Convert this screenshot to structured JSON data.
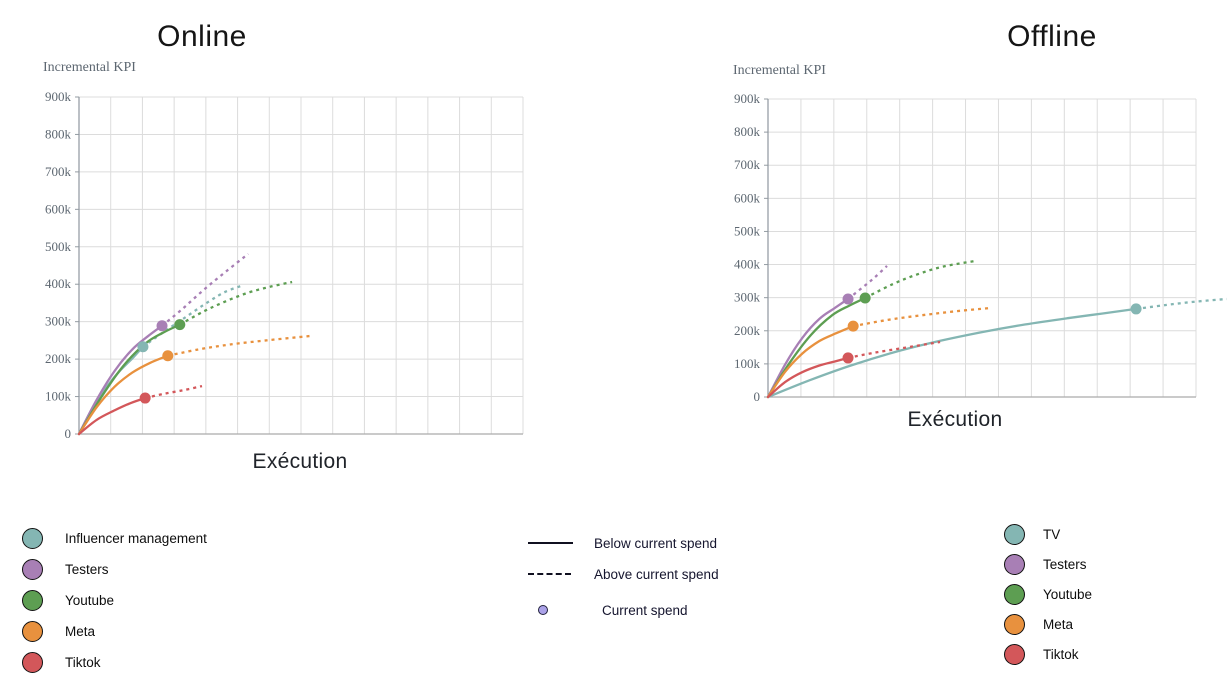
{
  "legends": {
    "online": {
      "items": [
        {
          "label": "Influencer management",
          "color": "#84b6b3"
        },
        {
          "label": "Testers",
          "color": "#a87fb5"
        },
        {
          "label": "Youtube",
          "color": "#5d9e52"
        },
        {
          "label": "Meta",
          "color": "#e8913e"
        },
        {
          "label": "Tiktok",
          "color": "#d3575a"
        }
      ]
    },
    "offline": {
      "items": [
        {
          "label": "TV",
          "color": "#84b6b3"
        },
        {
          "label": "Testers",
          "color": "#a87fb5"
        },
        {
          "label": "Youtube",
          "color": "#5d9e52"
        },
        {
          "label": "Meta",
          "color": "#e8913e"
        },
        {
          "label": "Tiktok",
          "color": "#d3575a"
        }
      ]
    },
    "styles": {
      "below": "Below current spend",
      "above": "Above current spend",
      "current": "Current spend",
      "current_dot_color": "#aba2e8"
    }
  },
  "chart_data": [
    {
      "type": "line",
      "title": "Online",
      "xlabel": "Exécution",
      "ylabel": "Incremental KPI",
      "ylim": [
        0,
        900000
      ],
      "y_ticks": [
        "0",
        "100k",
        "200k",
        "300k",
        "400k",
        "500k",
        "600k",
        "700k",
        "800k",
        "900k"
      ],
      "x_ticks": "none (unlabeled spend axis, gridlines only)",
      "grid": true,
      "y_units": "thousands of incremental KPI",
      "x_units": "fraction of plot width",
      "line_styles": {
        "solid": "below current spend",
        "dashed": "above current spend",
        "dot": "current spend"
      },
      "series": [
        {
          "name": "Influencer management",
          "color": "#84b6b3",
          "solid": [
            [
              0,
              0
            ],
            [
              0.03,
              68
            ],
            [
              0.06,
              122
            ],
            [
              0.09,
              166
            ],
            [
              0.12,
              202
            ],
            [
              0.144,
              233
            ]
          ],
          "dashed": [
            [
              0.144,
              233
            ],
            [
              0.19,
              272
            ],
            [
              0.24,
              312
            ],
            [
              0.29,
              352
            ],
            [
              0.33,
              380
            ],
            [
              0.367,
              396
            ]
          ],
          "current_spend": [
            0.144,
            233
          ]
        },
        {
          "name": "Testers",
          "color": "#a87fb5",
          "solid": [
            [
              0,
              0
            ],
            [
              0.04,
              92
            ],
            [
              0.08,
              168
            ],
            [
              0.12,
              226
            ],
            [
              0.155,
              261
            ],
            [
              0.187,
              289
            ]
          ],
          "dashed": [
            [
              0.187,
              289
            ],
            [
              0.23,
              331
            ],
            [
              0.28,
              384
            ],
            [
              0.33,
              433
            ],
            [
              0.381,
              481
            ]
          ],
          "current_spend": [
            0.187,
            289
          ]
        },
        {
          "name": "Youtube",
          "color": "#5d9e52",
          "solid": [
            [
              0,
              0
            ],
            [
              0.05,
              98
            ],
            [
              0.1,
              182
            ],
            [
              0.15,
              242
            ],
            [
              0.19,
              271
            ],
            [
              0.227,
              292
            ]
          ],
          "dashed": [
            [
              0.227,
              292
            ],
            [
              0.28,
              327
            ],
            [
              0.33,
              354
            ],
            [
              0.38,
              377
            ],
            [
              0.43,
              393
            ],
            [
              0.48,
              406
            ]
          ],
          "current_spend": [
            0.227,
            292
          ]
        },
        {
          "name": "Meta",
          "color": "#e8913e",
          "solid": [
            [
              0,
              0
            ],
            [
              0.04,
              72
            ],
            [
              0.08,
              126
            ],
            [
              0.12,
              164
            ],
            [
              0.16,
              190
            ],
            [
              0.2,
              209
            ]
          ],
          "dashed": [
            [
              0.2,
              209
            ],
            [
              0.27,
              226
            ],
            [
              0.34,
              239
            ],
            [
              0.43,
              251
            ],
            [
              0.523,
              262
            ]
          ],
          "current_spend": [
            0.2,
            209
          ]
        },
        {
          "name": "Tiktok",
          "color": "#d3575a",
          "solid": [
            [
              0,
              0
            ],
            [
              0.04,
              38
            ],
            [
              0.08,
              63
            ],
            [
              0.115,
              82
            ],
            [
              0.149,
              96
            ]
          ],
          "dashed": [
            [
              0.149,
              96
            ],
            [
              0.19,
              107
            ],
            [
              0.235,
              117
            ],
            [
              0.277,
              128
            ]
          ],
          "current_spend": [
            0.149,
            96
          ]
        }
      ]
    },
    {
      "type": "line",
      "title": "Offline",
      "xlabel": "Exécution",
      "ylabel": "Incremental KPI",
      "ylim": [
        0,
        900000
      ],
      "y_ticks": [
        "0",
        "100k",
        "200k",
        "300k",
        "400k",
        "500k",
        "600k",
        "700k",
        "800k",
        "900k"
      ],
      "x_ticks": "none (unlabeled spend axis, gridlines only)",
      "grid": true,
      "y_units": "thousands of incremental KPI",
      "x_units": "fraction of plot width",
      "line_styles": {
        "solid": "below current spend",
        "dashed": "above current spend",
        "dot": "current spend"
      },
      "series": [
        {
          "name": "TV",
          "color": "#84b6b3",
          "solid": [
            [
              0,
              0
            ],
            [
              0.1,
              52
            ],
            [
              0.2,
              98
            ],
            [
              0.3,
              137
            ],
            [
              0.4,
              169
            ],
            [
              0.5,
              196
            ],
            [
              0.6,
              219
            ],
            [
              0.7,
              238
            ],
            [
              0.78,
              252
            ],
            [
              0.86,
              266
            ]
          ],
          "dashed": [
            [
              0.86,
              266
            ],
            [
              0.93,
              278
            ],
            [
              1.0,
              288
            ],
            [
              1.072,
              296
            ]
          ],
          "current_spend": [
            0.86,
            266
          ]
        },
        {
          "name": "Testers",
          "color": "#a87fb5",
          "solid": [
            [
              0,
              0
            ],
            [
              0.04,
              98
            ],
            [
              0.08,
              178
            ],
            [
              0.12,
              236
            ],
            [
              0.155,
              268
            ],
            [
              0.187,
              296
            ]
          ],
          "dashed": [
            [
              0.187,
              296
            ],
            [
              0.22,
              330
            ],
            [
              0.25,
              362
            ],
            [
              0.278,
              396
            ]
          ],
          "current_spend": [
            0.187,
            296
          ]
        },
        {
          "name": "Youtube",
          "color": "#5d9e52",
          "solid": [
            [
              0,
              0
            ],
            [
              0.05,
              102
            ],
            [
              0.1,
              187
            ],
            [
              0.15,
              247
            ],
            [
              0.19,
              276
            ],
            [
              0.227,
              299
            ]
          ],
          "dashed": [
            [
              0.227,
              299
            ],
            [
              0.29,
              340
            ],
            [
              0.35,
              371
            ],
            [
              0.41,
              394
            ],
            [
              0.484,
              411
            ]
          ],
          "current_spend": [
            0.227,
            299
          ]
        },
        {
          "name": "Meta",
          "color": "#e8913e",
          "solid": [
            [
              0,
              0
            ],
            [
              0.04,
              76
            ],
            [
              0.08,
              131
            ],
            [
              0.12,
              169
            ],
            [
              0.16,
              193
            ],
            [
              0.199,
              214
            ]
          ],
          "dashed": [
            [
              0.199,
              214
            ],
            [
              0.28,
              233
            ],
            [
              0.36,
              247
            ],
            [
              0.44,
              259
            ],
            [
              0.523,
              269
            ]
          ],
          "current_spend": [
            0.199,
            214
          ]
        },
        {
          "name": "Tiktok",
          "color": "#d3575a",
          "solid": [
            [
              0,
              0
            ],
            [
              0.04,
              45
            ],
            [
              0.08,
              75
            ],
            [
              0.12,
              95
            ],
            [
              0.155,
              107
            ],
            [
              0.187,
              118
            ]
          ],
          "dashed": [
            [
              0.187,
              118
            ],
            [
              0.25,
              134
            ],
            [
              0.32,
              149
            ],
            [
              0.402,
              166
            ]
          ],
          "current_spend": [
            0.187,
            118
          ]
        }
      ]
    }
  ]
}
